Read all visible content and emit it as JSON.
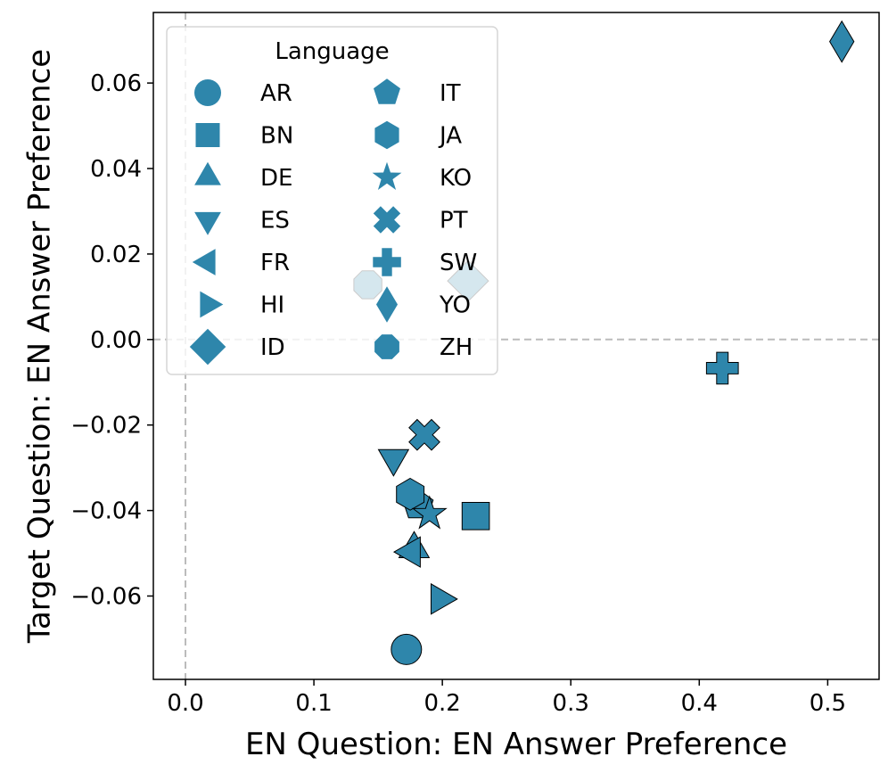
{
  "chart_data": {
    "type": "scatter",
    "xlabel": "EN Question: EN Answer Preference",
    "ylabel": "Target Question: EN Answer Preference",
    "xlim": [
      -0.025,
      0.54
    ],
    "ylim": [
      -0.0795,
      0.0765
    ],
    "x_ticks": [
      0.0,
      0.1,
      0.2,
      0.3,
      0.4,
      0.5
    ],
    "x_tick_labels": [
      "0.0",
      "0.1",
      "0.2",
      "0.3",
      "0.4",
      "0.5"
    ],
    "y_ticks": [
      -0.06,
      -0.04,
      -0.02,
      0.0,
      0.02,
      0.04,
      0.06
    ],
    "y_tick_labels": [
      "−0.06",
      "−0.04",
      "−0.02",
      "0.00",
      "0.02",
      "0.04",
      "0.06"
    ],
    "reference_lines": {
      "x": 0,
      "y": 0,
      "style": "dashed",
      "color": "#bbbbbb"
    },
    "marker_color": "#2e86ab",
    "legend": {
      "title": "Language",
      "location": "top-left",
      "columns": 2
    },
    "series": [
      {
        "name": "AR",
        "marker": "circle",
        "x": 0.172,
        "y": -0.0725
      },
      {
        "name": "BN",
        "marker": "square",
        "x": 0.226,
        "y": -0.0413
      },
      {
        "name": "DE",
        "marker": "triangle-up",
        "x": 0.178,
        "y": -0.049
      },
      {
        "name": "ES",
        "marker": "triangle-down",
        "x": 0.162,
        "y": -0.0278
      },
      {
        "name": "FR",
        "marker": "triangle-left",
        "x": 0.176,
        "y": -0.0497
      },
      {
        "name": "HI",
        "marker": "triangle-right",
        "x": 0.198,
        "y": -0.0607
      },
      {
        "name": "ID",
        "marker": "diamond",
        "x": 0.22,
        "y": 0.0137
      },
      {
        "name": "IT",
        "marker": "pentagon",
        "x": 0.181,
        "y": -0.0387
      },
      {
        "name": "JA",
        "marker": "hexagon",
        "x": 0.175,
        "y": -0.0362
      },
      {
        "name": "KO",
        "marker": "star",
        "x": 0.19,
        "y": -0.0408
      },
      {
        "name": "PT",
        "marker": "x-cross",
        "x": 0.186,
        "y": -0.0223
      },
      {
        "name": "SW",
        "marker": "plus",
        "x": 0.418,
        "y": -0.0067
      },
      {
        "name": "YO",
        "marker": "thin-diamond",
        "x": 0.511,
        "y": 0.0697
      },
      {
        "name": "ZH",
        "marker": "octagon",
        "x": 0.142,
        "y": 0.0128
      }
    ]
  }
}
